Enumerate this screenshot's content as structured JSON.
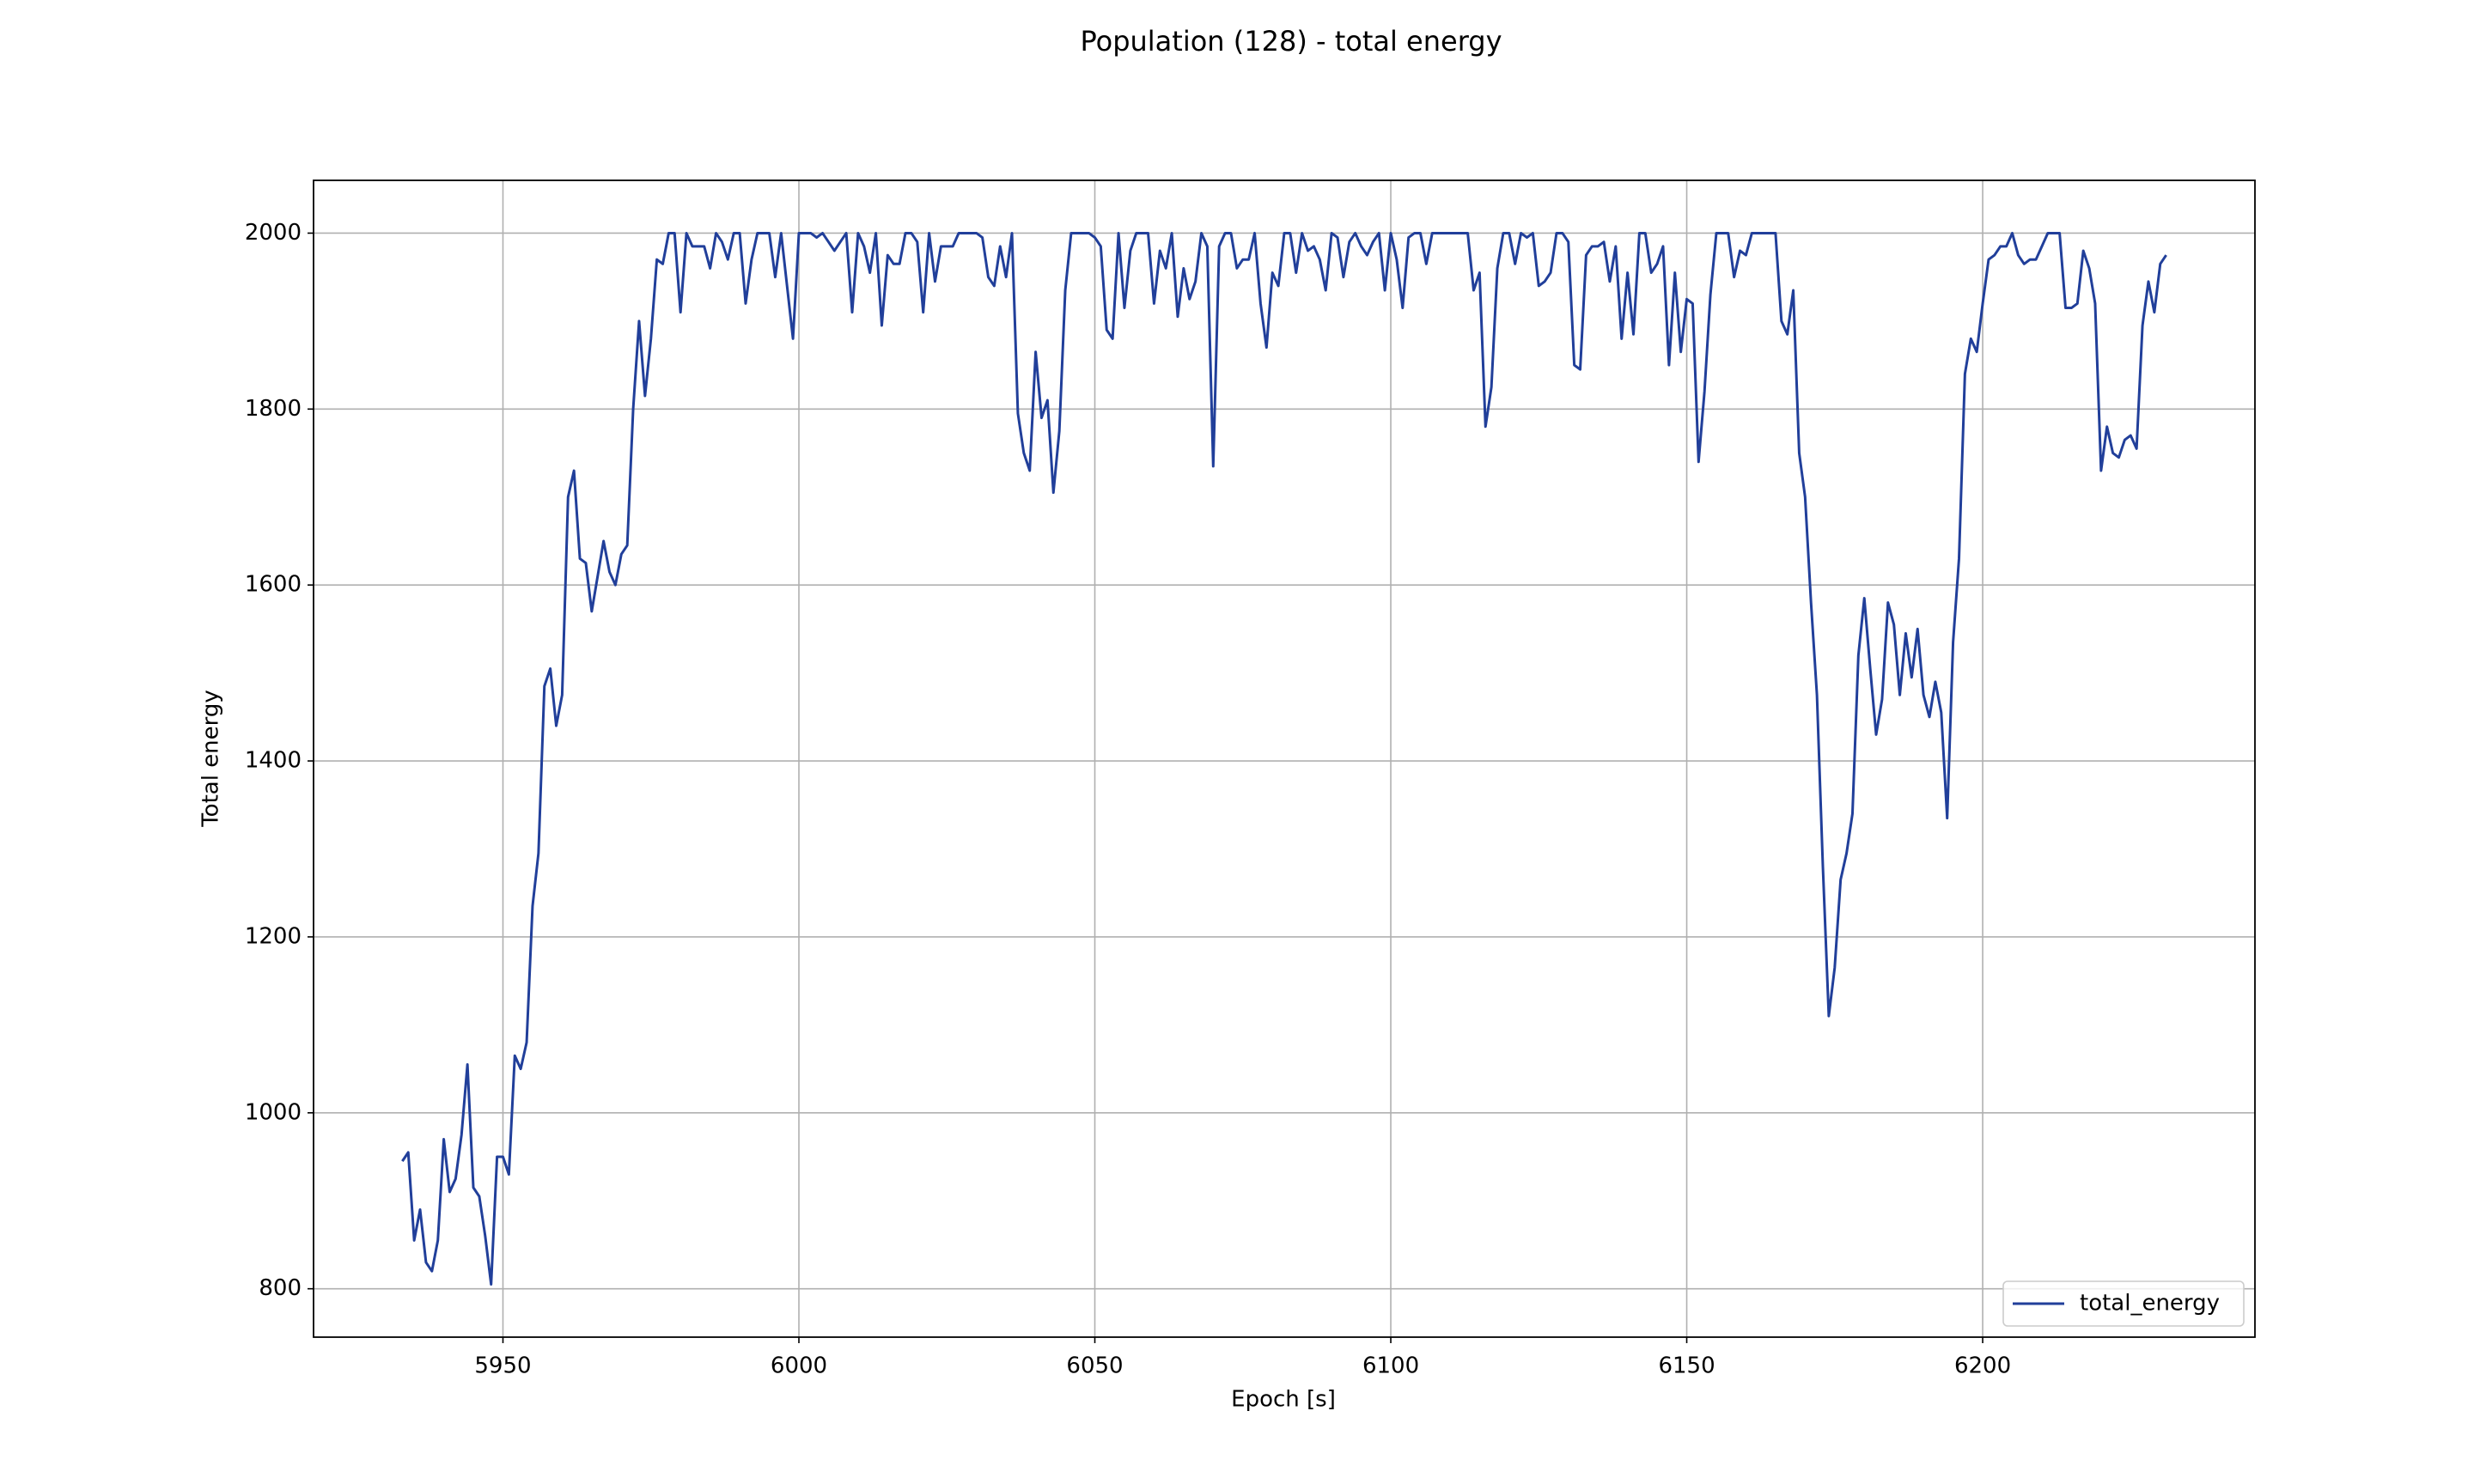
{
  "chart_data": {
    "type": "line",
    "title": "Population (128) - total energy",
    "x_label": "Epoch [s]",
    "y_label": "Total energy",
    "x": [
      5933,
      5934,
      5935,
      5936,
      5937,
      5938,
      5939,
      5940,
      5941,
      5942,
      5943,
      5944,
      5945,
      5946,
      5947,
      5948,
      5949,
      5950,
      5951,
      5952,
      5953,
      5954,
      5955,
      5956,
      5957,
      5958,
      5959,
      5960,
      5961,
      5962,
      5963,
      5964,
      5965,
      5966,
      5967,
      5968,
      5969,
      5970,
      5971,
      5972,
      5973,
      5974,
      5975,
      5976,
      5977,
      5978,
      5979,
      5980,
      5981,
      5982,
      5983,
      5984,
      5985,
      5986,
      5987,
      5988,
      5989,
      5990,
      5991,
      5992,
      5993,
      5994,
      5995,
      5996,
      5997,
      5998,
      5999,
      6000,
      6001,
      6002,
      6003,
      6004,
      6005,
      6006,
      6007,
      6008,
      6009,
      6010,
      6011,
      6012,
      6013,
      6014,
      6015,
      6016,
      6017,
      6018,
      6019,
      6020,
      6021,
      6022,
      6023,
      6024,
      6025,
      6026,
      6027,
      6028,
      6029,
      6030,
      6031,
      6032,
      6033,
      6034,
      6035,
      6036,
      6037,
      6038,
      6039,
      6040,
      6041,
      6042,
      6043,
      6044,
      6045,
      6046,
      6047,
      6048,
      6049,
      6050,
      6051,
      6052,
      6053,
      6054,
      6055,
      6056,
      6057,
      6058,
      6059,
      6060,
      6061,
      6062,
      6063,
      6064,
      6065,
      6066,
      6067,
      6068,
      6069,
      6070,
      6071,
      6072,
      6073,
      6074,
      6075,
      6076,
      6077,
      6078,
      6079,
      6080,
      6081,
      6082,
      6083,
      6084,
      6085,
      6086,
      6087,
      6088,
      6089,
      6090,
      6091,
      6092,
      6093,
      6094,
      6095,
      6096,
      6097,
      6098,
      6099,
      6100,
      6101,
      6102,
      6103,
      6104,
      6105,
      6106,
      6107,
      6108,
      6109,
      6110,
      6111,
      6112,
      6113,
      6114,
      6115,
      6116,
      6117,
      6118,
      6119,
      6120,
      6121,
      6122,
      6123,
      6124,
      6125,
      6126,
      6127,
      6128,
      6129,
      6130,
      6131,
      6132,
      6133,
      6134,
      6135,
      6136,
      6137,
      6138,
      6139,
      6140,
      6141,
      6142,
      6143,
      6144,
      6145,
      6146,
      6147,
      6148,
      6149,
      6150,
      6151,
      6152,
      6153,
      6154,
      6155,
      6156,
      6157,
      6158,
      6159,
      6160,
      6161,
      6162,
      6163,
      6164,
      6165,
      6166,
      6167,
      6168,
      6169,
      6170,
      6171,
      6172,
      6173,
      6174,
      6175,
      6176,
      6177,
      6178,
      6179,
      6180,
      6181,
      6182,
      6183,
      6184,
      6185,
      6186,
      6187,
      6188,
      6189,
      6190,
      6191,
      6192,
      6193,
      6194,
      6195,
      6196,
      6197,
      6198,
      6199,
      6200,
      6201,
      6202,
      6203,
      6204,
      6205,
      6206,
      6207,
      6208,
      6209,
      6210,
      6211,
      6212,
      6213,
      6214,
      6215,
      6216,
      6217,
      6218,
      6219,
      6220,
      6221,
      6222,
      6223,
      6224,
      6225,
      6226,
      6227,
      6228,
      6229,
      6230,
      6231
    ],
    "series": [
      {
        "name": "total_energy",
        "color": "#213f9a",
        "values": [
          945,
          955,
          855,
          890,
          830,
          820,
          855,
          970,
          910,
          925,
          975,
          1055,
          915,
          905,
          860,
          805,
          950,
          950,
          930,
          1065,
          1050,
          1080,
          1235,
          1295,
          1485,
          1505,
          1440,
          1475,
          1700,
          1730,
          1630,
          1625,
          1570,
          1610,
          1650,
          1615,
          1600,
          1635,
          1645,
          1800,
          1900,
          1815,
          1880,
          1970,
          1965,
          2000,
          2000,
          1910,
          2000,
          1985,
          1985,
          1985,
          1960,
          2000,
          1990,
          1970,
          2000,
          2000,
          1920,
          1970,
          2000,
          2000,
          2000,
          1950,
          2000,
          1940,
          1880,
          2000,
          2000,
          2000,
          1995,
          2000,
          1990,
          1980,
          1990,
          2000,
          1910,
          2000,
          1985,
          1955,
          2000,
          1895,
          1975,
          1965,
          1965,
          2000,
          2000,
          1990,
          1910,
          2000,
          1945,
          1985,
          1985,
          1985,
          2000,
          2000,
          2000,
          2000,
          1995,
          1950,
          1940,
          1985,
          1950,
          2000,
          1795,
          1750,
          1730,
          1865,
          1790,
          1810,
          1705,
          1775,
          1935,
          2000,
          2000,
          2000,
          2000,
          1995,
          1985,
          1890,
          1880,
          2000,
          1915,
          1980,
          2000,
          2000,
          2000,
          1920,
          1980,
          1960,
          2000,
          1905,
          1960,
          1925,
          1945,
          2000,
          1985,
          1735,
          1985,
          2000,
          2000,
          1960,
          1970,
          1970,
          2000,
          1920,
          1870,
          1955,
          1940,
          2000,
          2000,
          1955,
          2000,
          1980,
          1985,
          1970,
          1935,
          2000,
          1995,
          1950,
          1990,
          2000,
          1985,
          1975,
          1990,
          2000,
          1935,
          2000,
          1970,
          1915,
          1995,
          2000,
          2000,
          1965,
          2000,
          2000,
          2000,
          2000,
          2000,
          2000,
          2000,
          1935,
          1955,
          1780,
          1825,
          1960,
          2000,
          2000,
          1965,
          2000,
          1995,
          2000,
          1940,
          1945,
          1955,
          2000,
          2000,
          1990,
          1850,
          1845,
          1975,
          1985,
          1985,
          1990,
          1945,
          1985,
          1880,
          1955,
          1885,
          2000,
          2000,
          1955,
          1965,
          1985,
          1850,
          1955,
          1865,
          1925,
          1920,
          1740,
          1820,
          1930,
          2000,
          2000,
          2000,
          1950,
          1980,
          1975,
          2000,
          2000,
          2000,
          2000,
          2000,
          1900,
          1885,
          1935,
          1750,
          1700,
          1580,
          1475,
          1280,
          1110,
          1165,
          1265,
          1295,
          1340,
          1520,
          1585,
          1505,
          1430,
          1470,
          1580,
          1555,
          1475,
          1545,
          1495,
          1550,
          1475,
          1450,
          1490,
          1455,
          1335,
          1535,
          1630,
          1840,
          1880,
          1865,
          1920,
          1970,
          1975,
          1985,
          1985,
          2000,
          1975,
          1965,
          1970,
          1970,
          1985,
          2000,
          2000,
          2000,
          1915,
          1915,
          1920,
          1980,
          1960,
          1920,
          1730,
          1780,
          1750,
          1745,
          1765,
          1770,
          1755,
          1895,
          1945,
          1910,
          1965,
          1975
        ]
      }
    ],
    "xlim": [
      5918,
      6246
    ],
    "ylim": [
      745,
      2060
    ],
    "xticks": [
      5950,
      6000,
      6050,
      6100,
      6150,
      6200
    ],
    "yticks": [
      800,
      1000,
      1200,
      1400,
      1600,
      1800,
      2000
    ],
    "grid": true,
    "legend": "lower right"
  }
}
